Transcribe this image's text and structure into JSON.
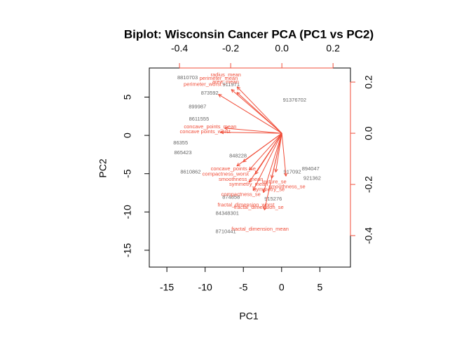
{
  "chart_data": {
    "type": "biplot",
    "title": "Biplot: Wisconsin Cancer PCA (PC1 vs PC2)",
    "xlabel": "PC1",
    "ylabel": "PC2",
    "xlim": [
      -17.3,
      9.0
    ],
    "ylim": [
      -17.2,
      8.8
    ],
    "xticks": [
      -15,
      -10,
      -5,
      0,
      5
    ],
    "yticks": [
      -15,
      -10,
      -5,
      0,
      5
    ],
    "x2lim": [
      -0.518,
      0.268
    ],
    "x2ticks": [
      -0.4,
      -0.2,
      {
        "value": 0,
        "label": "0.0"
      },
      0.2
    ],
    "y2lim": [
      -0.523,
      0.255
    ],
    "y2ticks": [
      -0.4,
      -0.2,
      {
        "value": 0,
        "label": "0.0"
      },
      0.2
    ],
    "points": {
      "color": "#666666",
      "labels": [
        "8810703",
        "911971",
        "873592",
        "91376702",
        "899987",
        "8611555",
        "86355",
        "865423",
        "8610862",
        "848228",
        "894047",
        "921362",
        "917092",
        "915276",
        "874858",
        "84348301",
        "8710441"
      ],
      "x": [
        -12.3,
        -6.6,
        -9.4,
        1.7,
        -11.0,
        -10.8,
        -13.2,
        -12.9,
        -11.9,
        -5.7,
        3.8,
        4.0,
        1.4,
        -1.1,
        -6.6,
        -7.1,
        -7.3
      ],
      "y": [
        7.5,
        6.6,
        5.5,
        4.6,
        3.7,
        2.1,
        -1.0,
        -2.3,
        -4.8,
        -2.7,
        -4.4,
        -5.6,
        -4.8,
        -8.3,
        -8.1,
        -10.2,
        -12.6
      ]
    },
    "loadings": {
      "color": "#f04e3a",
      "labels": [
        "radius_mean",
        "perimeter_mean",
        "area_mean",
        "perimeter_worst",
        "concave_points_mean",
        "concave points_worst",
        "compactness_worst",
        "concave_points_se",
        "smoothness_mean",
        "symmetry_mean",
        "texture_se",
        "symmetry_se",
        "smoothness_se",
        "compactness_se",
        "fractal_dimension_worst",
        "fractal_dimension_se",
        "fractal_dimension_mean"
      ],
      "x": [
        -0.219,
        -0.247,
        -0.22,
        -0.31,
        -0.28,
        -0.3,
        -0.22,
        -0.19,
        -0.16,
        -0.13,
        -0.03,
        -0.05,
        0.02,
        -0.16,
        -0.14,
        -0.09,
        -0.085
      ],
      "y": [
        0.227,
        0.214,
        0.2,
        0.19,
        0.025,
        0.005,
        -0.16,
        -0.14,
        -0.18,
        -0.2,
        -0.19,
        -0.22,
        -0.21,
        -0.24,
        -0.28,
        -0.29,
        -0.375
      ]
    }
  }
}
